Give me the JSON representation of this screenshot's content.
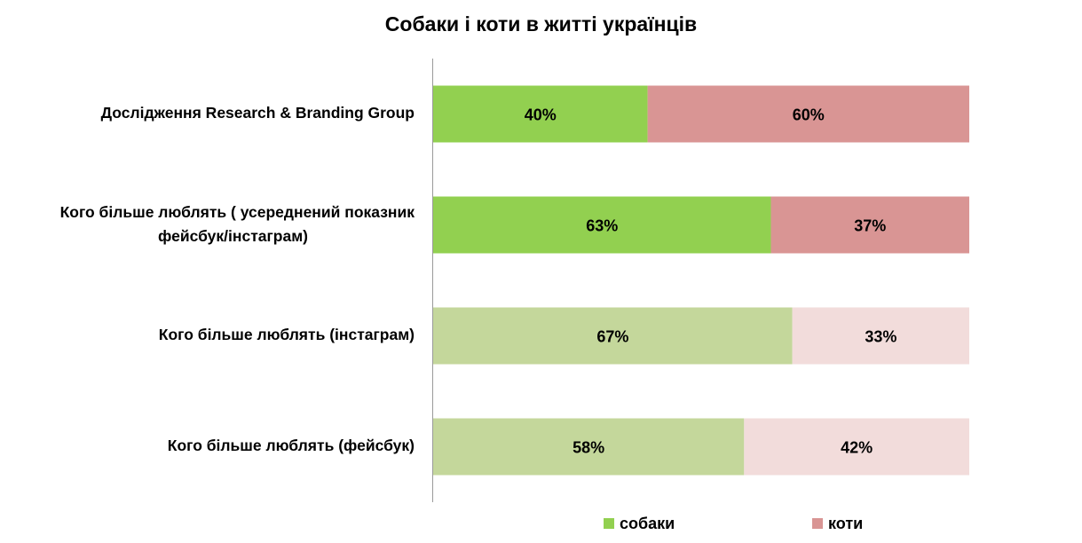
{
  "chart_data": {
    "type": "bar",
    "orientation": "horizontal",
    "stacked": true,
    "percent_stacked": true,
    "title": "Собаки і коти в житті українців",
    "categories": [
      "Дослідження Research & Branding Group",
      "Кого більше люблять ( усереднений показник фейсбук/інстаграм)",
      "Кого більше люблять (інстаграм)",
      "Кого більше люблять  (фейсбук)"
    ],
    "category_lines": [
      [
        "Дослідження Research & Branding Group"
      ],
      [
        "Кого більше люблять ( усереднений показник",
        "фейсбук/інстаграм)"
      ],
      [
        "Кого більше люблять (інстаграм)"
      ],
      [
        "Кого більше люблять  (фейсбук)"
      ]
    ],
    "series": [
      {
        "name": "собаки",
        "values": [
          40,
          63,
          67,
          58
        ],
        "labels": [
          "40%",
          "63%",
          "67%",
          "58%"
        ],
        "color": "#92d050",
        "point_colors": [
          "#92d050",
          "#92d050",
          "#c4d79b",
          "#c4d79b"
        ]
      },
      {
        "name": "коти",
        "values": [
          60,
          37,
          33,
          42
        ],
        "labels": [
          "60%",
          "37%",
          "33%",
          "42%"
        ],
        "color": "#d99594",
        "point_colors": [
          "#d99594",
          "#d99594",
          "#f2dcdb",
          "#f2dcdb"
        ]
      }
    ],
    "xlim": [
      0,
      100
    ],
    "grid": false,
    "legend_position": "bottom"
  }
}
